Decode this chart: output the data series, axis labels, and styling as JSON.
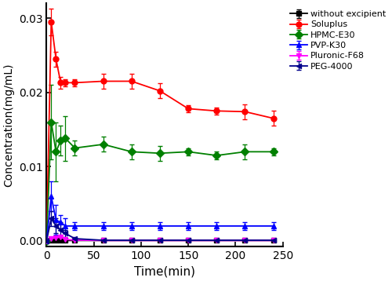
{
  "time_points": [
    0,
    5,
    10,
    15,
    20,
    30,
    60,
    90,
    120,
    150,
    180,
    210,
    240
  ],
  "series": [
    {
      "label": "without excipient",
      "color": "#000000",
      "marker": "s",
      "markersize": 5,
      "y": [
        0.0,
        5e-05,
        5e-05,
        5e-05,
        5e-05,
        5e-05,
        5e-05,
        5e-05,
        5e-05,
        5e-05,
        5e-05,
        5e-05,
        5e-05
      ],
      "yerr": [
        0.0,
        3e-05,
        3e-05,
        3e-05,
        3e-05,
        3e-05,
        2e-05,
        2e-05,
        2e-05,
        2e-05,
        2e-05,
        2e-05,
        2e-05
      ]
    },
    {
      "label": "Soluplus",
      "color": "#ff0000",
      "marker": "o",
      "markersize": 5,
      "y": [
        0.0,
        0.0295,
        0.0245,
        0.0213,
        0.0213,
        0.0213,
        0.0215,
        0.0215,
        0.0202,
        0.0178,
        0.0175,
        0.0174,
        0.0165
      ],
      "yerr": [
        0.0,
        0.0018,
        0.001,
        0.0008,
        0.0005,
        0.0005,
        0.001,
        0.001,
        0.001,
        0.0005,
        0.0005,
        0.001,
        0.001
      ]
    },
    {
      "label": "HPMC-E30",
      "color": "#008000",
      "marker": "D",
      "markersize": 5,
      "y": [
        0.0,
        0.016,
        0.012,
        0.0135,
        0.0138,
        0.0125,
        0.013,
        0.012,
        0.0118,
        0.012,
        0.0115,
        0.012,
        0.012
      ],
      "yerr": [
        0.0,
        0.005,
        0.004,
        0.002,
        0.003,
        0.001,
        0.001,
        0.001,
        0.001,
        0.0005,
        0.0005,
        0.001,
        0.0005
      ]
    },
    {
      "label": "PVP-K30",
      "color": "#0000ff",
      "marker": "^",
      "markersize": 5,
      "y": [
        0.0,
        0.006,
        0.0028,
        0.0025,
        0.002,
        0.002,
        0.002,
        0.002,
        0.002,
        0.002,
        0.002,
        0.002,
        0.002
      ],
      "yerr": [
        0.0,
        0.002,
        0.002,
        0.001,
        0.001,
        0.0005,
        0.0005,
        0.0005,
        0.0005,
        0.0005,
        0.0005,
        0.0005,
        0.0005
      ]
    },
    {
      "label": "Pluronic-F68",
      "color": "#ff00ff",
      "marker": "v",
      "markersize": 5,
      "y": [
        0.0,
        0.0003,
        0.0004,
        0.0005,
        0.0002,
        0.0001,
        5e-05,
        5e-05,
        5e-05,
        5e-05,
        5e-05,
        5e-05,
        5e-05
      ],
      "yerr": [
        0.0,
        0.0001,
        0.0001,
        0.0001,
        0.0001,
        5e-05,
        0.0,
        0.0,
        0.0,
        0.0,
        0.0,
        0.0,
        0.0
      ]
    },
    {
      "label": "PEG-4000",
      "color": "#00008b",
      "marker": "<",
      "markersize": 5,
      "y": [
        0.0,
        0.003,
        0.002,
        0.0015,
        0.001,
        0.0003,
        8e-05,
        8e-05,
        8e-05,
        8e-05,
        8e-05,
        8e-05,
        8e-05
      ],
      "yerr": [
        0.0,
        0.001,
        0.001,
        0.001,
        0.0005,
        0.0002,
        5e-05,
        5e-05,
        5e-05,
        5e-05,
        5e-05,
        5e-05,
        5e-05
      ]
    }
  ],
  "xlabel": "Time(min)",
  "ylabel": "Concentration(mg/mL)",
  "xlim": [
    0,
    250
  ],
  "ylim": [
    -0.0008,
    0.032
  ],
  "yticks": [
    0.0,
    0.01,
    0.02,
    0.03
  ],
  "xticks": [
    0,
    50,
    100,
    150,
    200,
    250
  ],
  "linewidth": 1.3,
  "capsize": 2.5,
  "elinewidth": 0.9
}
